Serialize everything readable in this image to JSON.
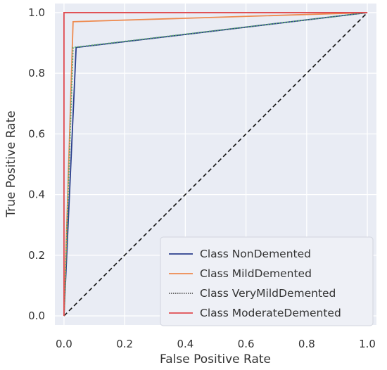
{
  "chart_data": {
    "type": "line",
    "title": "",
    "xlabel": "False Positive Rate",
    "ylabel": "True Positive Rate",
    "xlim": [
      -0.03,
      1.03
    ],
    "ylim": [
      -0.03,
      1.03
    ],
    "xticks": [
      0.0,
      0.2,
      0.4,
      0.6,
      0.8,
      1.0
    ],
    "yticks": [
      0.0,
      0.2,
      0.4,
      0.6,
      0.8,
      1.0
    ],
    "xtick_labels": [
      "0.0",
      "0.2",
      "0.4",
      "0.6",
      "0.8",
      "1.0"
    ],
    "ytick_labels": [
      "0.0",
      "0.2",
      "0.4",
      "0.6",
      "0.8",
      "1.0"
    ],
    "grid": true,
    "background": "#e9ecf4",
    "legend_position": "bottom-right",
    "series": [
      {
        "name": "Class NonDemented",
        "color": "#2b3f8c",
        "dash": "solid",
        "x": [
          0.0,
          0.04,
          1.0
        ],
        "y": [
          0.0,
          0.885,
          1.0
        ]
      },
      {
        "name": "Class MildDemented",
        "color": "#ee8a4e",
        "dash": "solid",
        "x": [
          0.0,
          0.03,
          1.0
        ],
        "y": [
          0.0,
          0.97,
          1.0
        ]
      },
      {
        "name": "Class VeryMildDemented",
        "color": "#5aa66a",
        "dash": "dotted",
        "x": [
          0.0,
          0.03,
          1.0
        ],
        "y": [
          0.0,
          0.885,
          1.0
        ]
      },
      {
        "name": "Class ModerateDemented",
        "color": "#e04b50",
        "dash": "solid",
        "x": [
          0.0,
          0.0,
          1.0
        ],
        "y": [
          0.0,
          1.0,
          1.0
        ]
      }
    ],
    "reference_line": {
      "x": [
        0.0,
        1.0
      ],
      "y": [
        0.0,
        1.0
      ],
      "color": "#111111",
      "dash": "dashed"
    }
  }
}
